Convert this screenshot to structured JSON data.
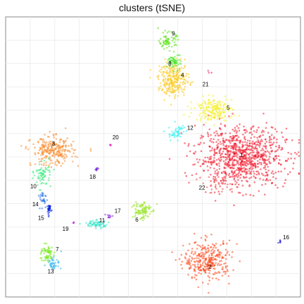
{
  "chart_data": {
    "type": "scatter",
    "title": "clusters (tSNE)",
    "xlabel": "",
    "ylabel": "",
    "grid": true,
    "legend": "none",
    "xlim": [
      0,
      100
    ],
    "ylim": [
      0,
      100
    ],
    "clusters": [
      {
        "label": "1",
        "color": "#f2182b",
        "cx": 80.0,
        "cy": 50.0,
        "sx": 7.5,
        "sy": 5.2,
        "n": 900,
        "lx": 80.0,
        "ly": 50.5
      },
      {
        "label": "2",
        "color": "#fb4a1e",
        "cx": 68.5,
        "cy": 13.0,
        "sx": 4.0,
        "sy": 3.4,
        "n": 320,
        "lx": 69.3,
        "ly": 10.6
      },
      {
        "label": "3",
        "color": "#f98a2b",
        "cx": 16.0,
        "cy": 52.0,
        "sx": 3.6,
        "sy": 2.5,
        "n": 260,
        "lx": 16.2,
        "ly": 54.6
      },
      {
        "label": "4",
        "color": "#fcc81c",
        "cx": 57.0,
        "cy": 77.5,
        "sx": 2.6,
        "sy": 3.0,
        "n": 260,
        "lx": 60.0,
        "ly": 79.0
      },
      {
        "label": "5",
        "color": "#f4ef24",
        "cx": 70.5,
        "cy": 67.0,
        "sx": 3.2,
        "sy": 2.0,
        "n": 190,
        "lx": 75.5,
        "ly": 67.3
      },
      {
        "label": "6",
        "color": "#9ae62a",
        "cx": 46.0,
        "cy": 31.0,
        "sx": 1.6,
        "sy": 1.8,
        "n": 100,
        "lx": 44.5,
        "ly": 27.4
      },
      {
        "label": "7",
        "color": "#72e817",
        "cx": 14.0,
        "cy": 15.5,
        "sx": 1.2,
        "sy": 1.6,
        "n": 60,
        "lx": 17.5,
        "ly": 16.9
      },
      {
        "label": "8",
        "color": "#4ae82a",
        "cx": 57.5,
        "cy": 84.0,
        "sx": 1.2,
        "sy": 1.3,
        "n": 60,
        "lx": 55.7,
        "ly": 83.2
      },
      {
        "label": "9",
        "color": "#5ee21c",
        "cx": 55.0,
        "cy": 91.5,
        "sx": 1.4,
        "sy": 1.4,
        "n": 70,
        "lx": 56.9,
        "ly": 93.9
      },
      {
        "label": "10",
        "color": "#3de77e",
        "cx": 12.5,
        "cy": 43.5,
        "sx": 1.4,
        "sy": 2.2,
        "n": 70,
        "lx": 9.4,
        "ly": 39.3
      },
      {
        "label": "11",
        "color": "#2ee3c5",
        "cx": 30.5,
        "cy": 26.0,
        "sx": 2.2,
        "sy": 0.7,
        "n": 60,
        "lx": 32.7,
        "ly": 27.2
      },
      {
        "label": "12",
        "color": "#2ef2f2",
        "cx": 58.0,
        "cy": 58.5,
        "sx": 1.4,
        "sy": 1.6,
        "n": 50,
        "lx": 62.6,
        "ly": 60.2
      },
      {
        "label": "13",
        "color": "#33b8f0",
        "cx": 16.5,
        "cy": 12.0,
        "sx": 1.2,
        "sy": 1.0,
        "n": 40,
        "lx": 15.3,
        "ly": 8.9
      },
      {
        "label": "14",
        "color": "#2d74e4",
        "cx": 12.5,
        "cy": 35.5,
        "sx": 0.7,
        "sy": 1.4,
        "n": 30,
        "lx": 10.1,
        "ly": 33.0
      },
      {
        "label": "15",
        "color": "#0c25e5",
        "cx": 14.8,
        "cy": 31.0,
        "sx": 0.4,
        "sy": 1.2,
        "n": 30,
        "lx": 12.0,
        "ly": 28.0
      },
      {
        "label": "16",
        "color": "#1a1add",
        "cx": 93.0,
        "cy": 19.5,
        "sx": 0.2,
        "sy": 0.4,
        "n": 6,
        "lx": 95.1,
        "ly": 21.1
      },
      {
        "label": "17",
        "color": "#8d28e8",
        "cx": 35.0,
        "cy": 29.0,
        "sx": 0.5,
        "sy": 0.4,
        "n": 10,
        "lx": 38.0,
        "ly": 30.5
      },
      {
        "label": "18",
        "color": "#6e1fd6",
        "cx": 31.0,
        "cy": 45.5,
        "sx": 0.3,
        "sy": 0.3,
        "n": 8,
        "lx": 29.5,
        "ly": 42.8
      },
      {
        "label": "19",
        "color": "#c41fe0",
        "cx": 23.0,
        "cy": 26.5,
        "sx": 0.2,
        "sy": 0.2,
        "n": 5,
        "lx": 20.3,
        "ly": 24.1
      },
      {
        "label": "20",
        "color": "#e51ab8",
        "cx": 35.5,
        "cy": 54.5,
        "sx": 0.2,
        "sy": 0.2,
        "n": 4,
        "lx": 37.3,
        "ly": 56.8
      },
      {
        "label": "21",
        "color": "#ee1a6e",
        "cx": 69.0,
        "cy": 80.0,
        "sx": 0.3,
        "sy": 0.3,
        "n": 3,
        "lx": 67.8,
        "ly": 75.8
      },
      {
        "label": "22",
        "color": "#f24a4a",
        "cx": 72.0,
        "cy": 40.0,
        "sx": 3.0,
        "sy": 1.5,
        "n": 30,
        "lx": 66.6,
        "ly": 38.8
      }
    ]
  }
}
